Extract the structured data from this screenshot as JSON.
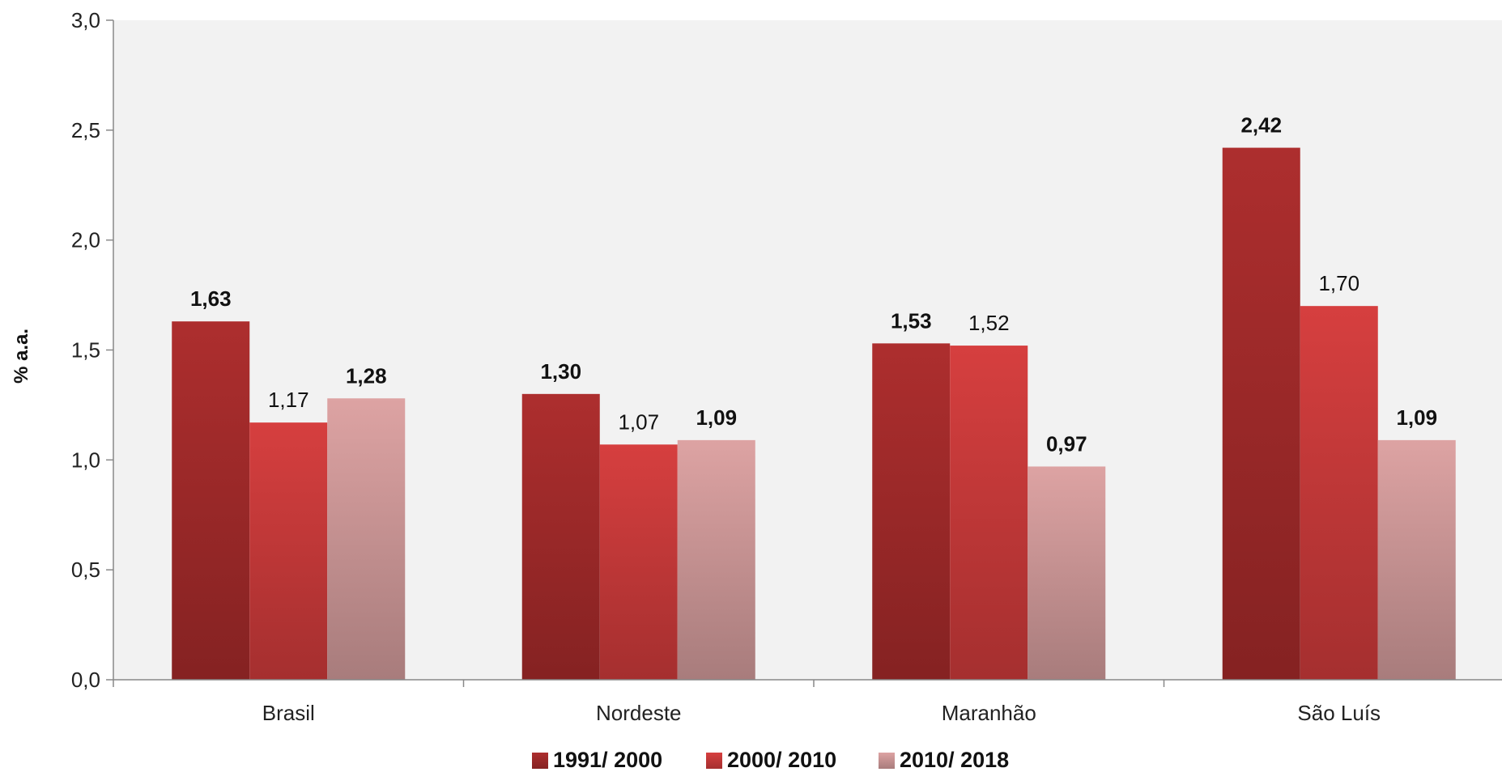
{
  "chart_data": {
    "type": "bar",
    "ylabel": "% a.a.",
    "xlabel": "",
    "ylim": [
      0,
      3.0
    ],
    "yticks": [
      "0,0",
      "0,5",
      "1,0",
      "1,5",
      "2,0",
      "2,5",
      "3,0"
    ],
    "categories": [
      "Brasil",
      "Nordeste",
      "Maranhão",
      "São Luís"
    ],
    "series": [
      {
        "name": "1991/ 2000",
        "values": [
          1.63,
          1.3,
          1.53,
          2.42
        ],
        "labels": [
          "1,63",
          "1,30",
          "1,53",
          "2,42"
        ],
        "label_bold": [
          true,
          true,
          true,
          true
        ],
        "color_top": "#ad2e2e",
        "color_bottom": "#852222"
      },
      {
        "name": "2000/ 2010",
        "values": [
          1.17,
          1.07,
          1.52,
          1.7
        ],
        "labels": [
          "1,17",
          "1,07",
          "1,52",
          "1,70"
        ],
        "label_bold": [
          false,
          false,
          false,
          false
        ],
        "color_top": "#d63f3f",
        "color_bottom": "#a52f2f"
      },
      {
        "name": "2010/ 2018",
        "values": [
          1.28,
          1.09,
          0.97,
          1.09
        ],
        "labels": [
          "1,28",
          "1,09",
          "0,97",
          "1,09"
        ],
        "label_bold": [
          true,
          true,
          true,
          true
        ],
        "color_top": "#dda3a3",
        "color_bottom": "#a87c7c"
      }
    ],
    "grid": false,
    "plot_background": "#f2f2f2",
    "legend_position": "bottom"
  }
}
